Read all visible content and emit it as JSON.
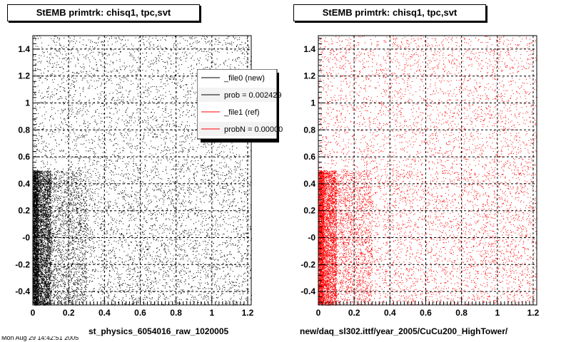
{
  "footer": "Mon Aug 29 14:42:51 2005",
  "legend": {
    "entries": [
      {
        "label": "_file0 (new)",
        "color": "#000000"
      },
      {
        "label": "prob = 0.002429",
        "color": "#000000"
      },
      {
        "label": "_file1 (ref)",
        "color": "#ff0000"
      },
      {
        "label": "probN = 0.000000",
        "color": "#ff0000"
      }
    ]
  },
  "chart_data": [
    {
      "type": "scatter",
      "title": "StEMB primtrk: chisq1, tpc,svt",
      "xlabel": "st_physics_6054016_raw_1020005",
      "ylabel": "",
      "xlim": [
        0,
        1.22
      ],
      "ylim": [
        -0.5,
        1.5
      ],
      "xticks": [
        "0",
        "0.2",
        "0.4",
        "0.6",
        "0.8",
        "1",
        "1.2"
      ],
      "yticks": [
        "-0.4",
        "-0.2",
        "-0",
        "0.2",
        "0.4",
        "0.6",
        "0.8",
        "1",
        "1.2",
        "1.4"
      ],
      "grid": true,
      "marker_color": "#000000",
      "density": [
        {
          "x": [
            0.0,
            0.03
          ],
          "y": [
            -0.5,
            0.5
          ],
          "level": "very dense"
        },
        {
          "x": [
            0.03,
            0.1
          ],
          "y": [
            -0.5,
            0.5
          ],
          "level": "dense"
        },
        {
          "x": [
            0.1,
            0.3
          ],
          "y": [
            -0.5,
            0.5
          ],
          "level": "medium"
        },
        {
          "x": [
            0.3,
            1.22
          ],
          "y": [
            -0.5,
            0.5
          ],
          "level": "sparse"
        },
        {
          "x": [
            0.0,
            1.22
          ],
          "y": [
            0.5,
            1.5
          ],
          "level": "sparse"
        }
      ]
    },
    {
      "type": "scatter",
      "title": "StEMB primtrk: chisq1, tpc,svt",
      "xlabel": "new/daq_sl302.ittf/year_2005/CuCu200_HighTower/",
      "ylabel": "",
      "xlim": [
        0,
        1.22
      ],
      "ylim": [
        -0.5,
        1.5
      ],
      "xticks": [
        "0",
        "0.2",
        "0.4",
        "0.6",
        "0.8",
        "1",
        "1.2"
      ],
      "yticks": [
        "-0.4",
        "-0.2",
        "-0",
        "0.2",
        "0.4",
        "0.6",
        "0.8",
        "1",
        "1.2",
        "1.4"
      ],
      "grid": true,
      "marker_color": "#ff0000",
      "density": [
        {
          "x": [
            0.0,
            0.03
          ],
          "y": [
            -0.5,
            0.5
          ],
          "level": "very dense"
        },
        {
          "x": [
            0.03,
            0.1
          ],
          "y": [
            -0.5,
            0.5
          ],
          "level": "dense"
        },
        {
          "x": [
            0.1,
            0.3
          ],
          "y": [
            -0.5,
            0.5
          ],
          "level": "medium"
        },
        {
          "x": [
            0.3,
            1.22
          ],
          "y": [
            -0.5,
            0.5
          ],
          "level": "sparse"
        },
        {
          "x": [
            0.0,
            1.22
          ],
          "y": [
            0.5,
            1.5
          ],
          "level": "sparse"
        }
      ]
    }
  ]
}
